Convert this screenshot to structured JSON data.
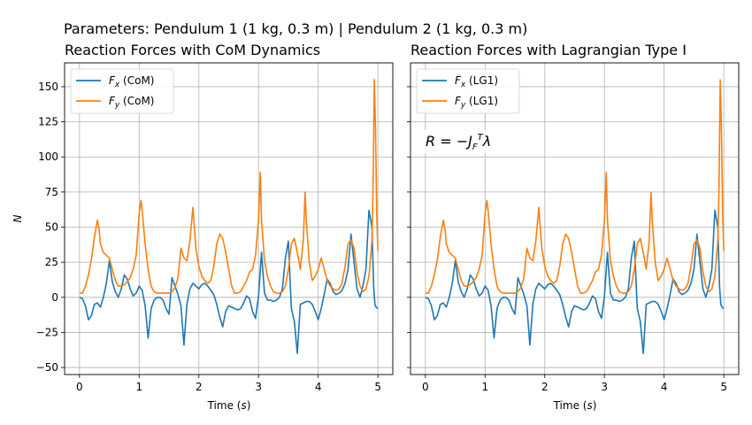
{
  "figure": {
    "suptitle": "Parameters: Pendulum 1 (1 kg, 0.3 m) | Pendulum 2 (1 kg, 0.3 m)"
  },
  "chart_data": [
    {
      "type": "line",
      "title": "Reaction Forces with CoM Dynamics",
      "xlabel": "Time (s)",
      "ylabel": "N",
      "xlim": [
        -0.25,
        5.25
      ],
      "ylim": [
        -55,
        167
      ],
      "xticks": [
        0,
        1,
        2,
        3,
        4,
        5
      ],
      "yticks": [
        -50,
        -25,
        0,
        25,
        50,
        75,
        100,
        125,
        150
      ],
      "grid": true,
      "legend": "top-left",
      "annotation": "",
      "series": [
        {
          "name": "Fx (CoM)",
          "color": "#1f77b4",
          "x": [
            0,
            0.05,
            0.1,
            0.15,
            0.2,
            0.25,
            0.3,
            0.35,
            0.4,
            0.45,
            0.5,
            0.55,
            0.6,
            0.65,
            0.7,
            0.75,
            0.8,
            0.85,
            0.9,
            0.95,
            1.0,
            1.05,
            1.1,
            1.15,
            1.2,
            1.25,
            1.3,
            1.35,
            1.4,
            1.45,
            1.5,
            1.55,
            1.6,
            1.65,
            1.7,
            1.75,
            1.8,
            1.85,
            1.9,
            1.95,
            2.0,
            2.05,
            2.1,
            2.15,
            2.2,
            2.25,
            2.3,
            2.35,
            2.4,
            2.45,
            2.5,
            2.55,
            2.6,
            2.65,
            2.7,
            2.75,
            2.8,
            2.85,
            2.9,
            2.95,
            3.0,
            3.05,
            3.1,
            3.15,
            3.2,
            3.25,
            3.3,
            3.35,
            3.4,
            3.45,
            3.5,
            3.55,
            3.6,
            3.65,
            3.7,
            3.75,
            3.8,
            3.85,
            3.9,
            3.95,
            4.0,
            4.05,
            4.1,
            4.15,
            4.2,
            4.25,
            4.3,
            4.35,
            4.4,
            4.45,
            4.5,
            4.55,
            4.6,
            4.65,
            4.7,
            4.75,
            4.8,
            4.85,
            4.9,
            4.93,
            4.95,
            4.97,
            5.0
          ],
          "y": [
            0,
            -1,
            -6,
            -16,
            -13,
            -5,
            -4,
            -7,
            0,
            10,
            26,
            11,
            4,
            0,
            6,
            16,
            13,
            6,
            1,
            3,
            8,
            5,
            -6,
            -29,
            -8,
            -2,
            0,
            0,
            -2,
            -8,
            -12,
            14,
            8,
            2,
            -6,
            -34,
            -5,
            6,
            10,
            8,
            6,
            9,
            10,
            8,
            5,
            2,
            -5,
            -14,
            -21,
            -10,
            -6,
            -7,
            -8,
            -9,
            -8,
            -4,
            1,
            -1,
            -10,
            -15,
            1,
            32,
            3,
            -2,
            -2,
            -3,
            -2,
            0,
            6,
            28,
            40,
            -8,
            -17,
            -40,
            -5,
            -4,
            -3,
            -3,
            -5,
            -10,
            -16,
            -8,
            2,
            13,
            10,
            4,
            2,
            3,
            5,
            10,
            20,
            45,
            25,
            6,
            0,
            8,
            20,
            62,
            50,
            7,
            -5,
            -7,
            -8
          ]
        },
        {
          "name": "Fy (CoM)",
          "color": "#ff7f0e",
          "x": [
            0,
            0.05,
            0.1,
            0.15,
            0.2,
            0.25,
            0.3,
            0.33,
            0.35,
            0.4,
            0.45,
            0.5,
            0.55,
            0.6,
            0.65,
            0.7,
            0.75,
            0.8,
            0.85,
            0.9,
            0.95,
            1.0,
            1.03,
            1.05,
            1.1,
            1.15,
            1.2,
            1.25,
            1.3,
            1.35,
            1.4,
            1.45,
            1.5,
            1.55,
            1.6,
            1.65,
            1.7,
            1.75,
            1.8,
            1.85,
            1.9,
            1.95,
            2.0,
            2.05,
            2.1,
            2.15,
            2.2,
            2.25,
            2.3,
            2.35,
            2.4,
            2.45,
            2.5,
            2.55,
            2.6,
            2.65,
            2.7,
            2.75,
            2.8,
            2.85,
            2.9,
            2.95,
            3.0,
            3.03,
            3.05,
            3.1,
            3.15,
            3.2,
            3.25,
            3.3,
            3.35,
            3.4,
            3.45,
            3.5,
            3.55,
            3.6,
            3.65,
            3.7,
            3.75,
            3.78,
            3.8,
            3.85,
            3.9,
            3.95,
            4.0,
            4.05,
            4.1,
            4.15,
            4.2,
            4.25,
            4.3,
            4.35,
            4.4,
            4.45,
            4.5,
            4.55,
            4.6,
            4.65,
            4.7,
            4.75,
            4.8,
            4.85,
            4.9,
            4.92,
            4.94,
            4.96,
            4.98,
            5.0
          ],
          "y": [
            3,
            3,
            8,
            16,
            27,
            43,
            55,
            48,
            38,
            32,
            30,
            28,
            20,
            12,
            8,
            8,
            9,
            11,
            14,
            20,
            30,
            60,
            69,
            62,
            38,
            20,
            8,
            4,
            3,
            3,
            3,
            3,
            3,
            4,
            7,
            14,
            35,
            28,
            26,
            40,
            64,
            35,
            22,
            15,
            12,
            10,
            12,
            22,
            38,
            45,
            42,
            32,
            20,
            8,
            3,
            3,
            4,
            8,
            12,
            18,
            20,
            30,
            55,
            89,
            55,
            26,
            15,
            8,
            4,
            3,
            3,
            4,
            8,
            20,
            38,
            42,
            32,
            20,
            40,
            75,
            55,
            25,
            12,
            15,
            20,
            28,
            20,
            12,
            8,
            6,
            5,
            6,
            10,
            22,
            38,
            41,
            35,
            18,
            8,
            4,
            6,
            15,
            40,
            80,
            155,
            120,
            60,
            33
          ]
        }
      ]
    },
    {
      "type": "line",
      "title": "Reaction Forces with Lagrangian Type I",
      "xlabel": "Time (s)",
      "ylabel": "",
      "xlim": [
        -0.25,
        5.25
      ],
      "ylim": [
        -55,
        167
      ],
      "xticks": [
        0,
        1,
        2,
        3,
        4,
        5
      ],
      "yticks": [
        -50,
        -25,
        0,
        25,
        50,
        75,
        100,
        125,
        150
      ],
      "grid": true,
      "legend": "top-left",
      "annotation": "R = −J_F^T λ",
      "series": [
        {
          "name": "Fx (LG1)",
          "color": "#1f77b4",
          "same_as": "Fx (CoM)"
        },
        {
          "name": "Fy (LG1)",
          "color": "#ff7f0e",
          "same_as": "Fy (CoM)"
        }
      ]
    }
  ]
}
